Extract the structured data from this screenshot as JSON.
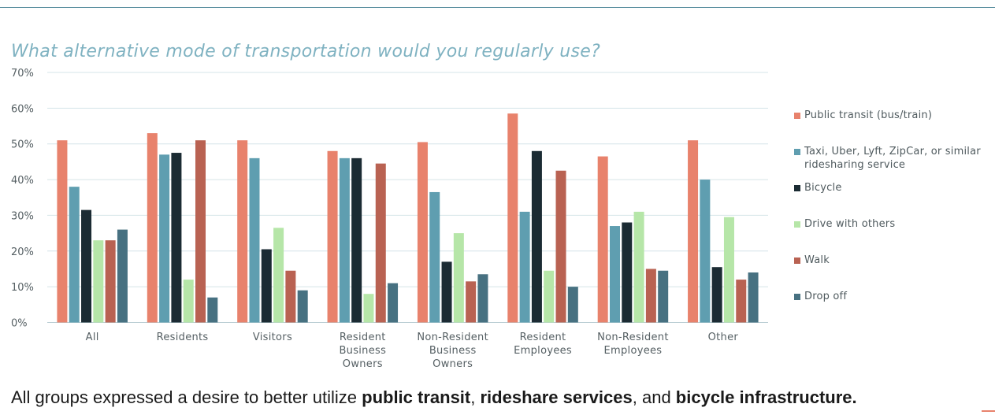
{
  "chart_data": {
    "type": "bar",
    "title": "What alternative mode of transportation would you regularly use?",
    "ylim": [
      0,
      70
    ],
    "yticks": [
      "0%",
      "10%",
      "20%",
      "30%",
      "40%",
      "50%",
      "60%",
      "70%"
    ],
    "grid": true,
    "legend_position": "right",
    "categories": [
      [
        "All"
      ],
      [
        "Residents"
      ],
      [
        "Visitors"
      ],
      [
        "Resident",
        "Business",
        "Owners"
      ],
      [
        "Non-Resident",
        "Business",
        "Owners"
      ],
      [
        "Resident",
        "Employees"
      ],
      [
        "Non-Resident",
        "Employees"
      ],
      [
        "Other"
      ]
    ],
    "series": [
      {
        "name": "Public transit (bus/train)",
        "color": "#e8826c",
        "values": [
          51,
          53,
          51,
          48,
          50.5,
          58.5,
          46.5,
          51
        ]
      },
      {
        "name": "Taxi, Uber, Lyft, ZipCar, or similar ridesharing service",
        "color": "#5f9eb0",
        "values": [
          38,
          47,
          46,
          46,
          36.5,
          31,
          27,
          40
        ]
      },
      {
        "name": "Bicycle",
        "color": "#1b2b33",
        "values": [
          31.5,
          47.5,
          20.5,
          46,
          17,
          48,
          28,
          15.5
        ]
      },
      {
        "name": "Drive with others",
        "color": "#b6e6a8",
        "values": [
          23,
          12,
          26.5,
          8,
          25,
          14.5,
          31,
          29.5
        ]
      },
      {
        "name": "Walk",
        "color": "#b96252",
        "values": [
          23,
          51,
          14.5,
          44.5,
          11.5,
          42.5,
          15,
          12
        ]
      },
      {
        "name": "Drop off",
        "color": "#477181",
        "values": [
          26,
          7,
          9,
          11,
          13.5,
          10,
          14.5,
          14
        ]
      }
    ]
  },
  "legend_labels": [
    [
      "Public transit (bus/train)"
    ],
    [
      "Taxi, Uber, Lyft, ZipCar, or similar",
      "ridesharing service"
    ],
    [
      "Bicycle"
    ],
    [
      "Drive with others"
    ],
    [
      "Walk"
    ],
    [
      "Drop off"
    ]
  ],
  "footer": {
    "pre": "All groups expressed a desire to better utilize ",
    "b1": "public transit",
    "sep1": ", ",
    "b2": "rideshare services",
    "sep2": ", and ",
    "b3": "bicycle infrastructure."
  }
}
